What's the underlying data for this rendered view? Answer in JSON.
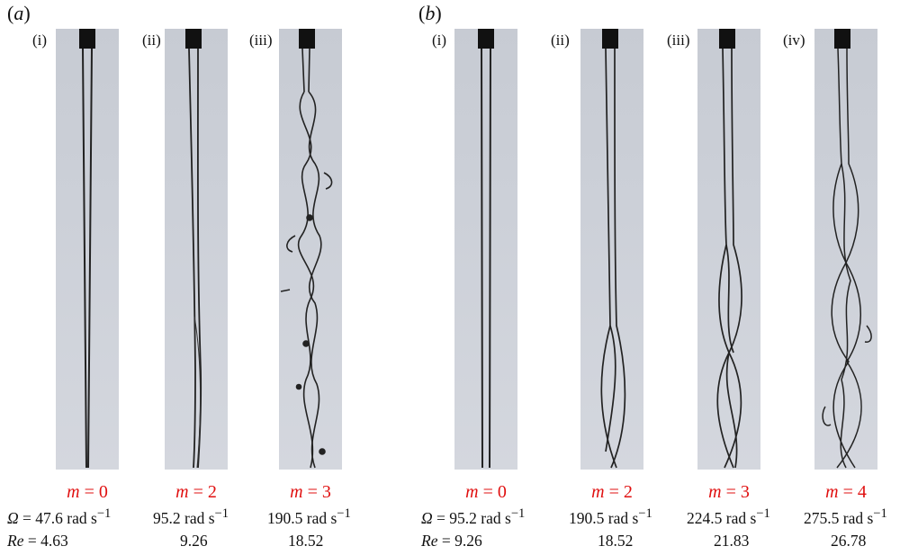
{
  "panels": {
    "a": {
      "label_open": "(",
      "label_letter": "a",
      "label_close": ")",
      "cols": [
        {
          "sub": "(i)",
          "mode_sym": "m",
          "mode_eq": " = 0",
          "omega_prefix_sym": "Ω",
          "omega_prefix_eq": " = ",
          "omega": "47.6 rad s",
          "omega_sup": "−1",
          "re_prefix_sym": "Re",
          "re_prefix_eq": " = ",
          "re": "4.63"
        },
        {
          "sub": "(ii)",
          "mode_sym": "m",
          "mode_eq": " = 2",
          "omega": "95.2 rad s",
          "omega_sup": "−1",
          "re": "9.26"
        },
        {
          "sub": "(iii)",
          "mode_sym": "m",
          "mode_eq": " = 3",
          "omega": "190.5 rad s",
          "omega_sup": "−1",
          "re": "18.52"
        }
      ]
    },
    "b": {
      "label_open": "(",
      "label_letter": "b",
      "label_close": ")",
      "cols": [
        {
          "sub": "(i)",
          "mode_sym": "m",
          "mode_eq": " = 0",
          "omega_prefix_sym": "Ω",
          "omega_prefix_eq": " = ",
          "omega": "95.2 rad s",
          "omega_sup": "−1",
          "re_prefix_sym": "Re",
          "re_prefix_eq": " = ",
          "re": "9.26"
        },
        {
          "sub": "(ii)",
          "mode_sym": "m",
          "mode_eq": " = 2",
          "omega": "190.5 rad s",
          "omega_sup": "−1",
          "re": "18.52"
        },
        {
          "sub": "(iii)",
          "mode_sym": "m",
          "mode_eq": " = 3",
          "omega": "224.5 rad s",
          "omega_sup": "−1",
          "re": "21.83"
        },
        {
          "sub": "(iv)",
          "mode_sym": "m",
          "mode_eq": " = 4",
          "omega": "275.5 rad s",
          "omega_sup": "−1",
          "re": "26.78"
        }
      ]
    }
  },
  "colors": {
    "mode_label": "#e01010",
    "nozzle": "#111111",
    "background_photo": "#cdd1d9"
  }
}
